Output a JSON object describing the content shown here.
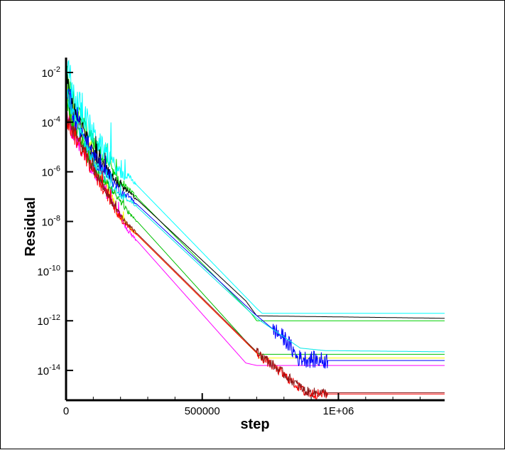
{
  "chart_data": {
    "type": "line",
    "title": "",
    "xlabel": "step",
    "ylabel": "Residual",
    "xlim": [
      0,
      1390000
    ],
    "ylim_log10": [
      -15.2,
      -1.4
    ],
    "y_scale": "log",
    "grid": false,
    "legend": "none",
    "x_ticks": [
      {
        "value": 0,
        "label": "0"
      },
      {
        "value": 500000,
        "label": "500000"
      },
      {
        "value": 1000000,
        "label": "1E+06"
      }
    ],
    "y_ticks": [
      {
        "exp": -2,
        "base": "10",
        "sup": "-2"
      },
      {
        "exp": -4,
        "base": "10",
        "sup": "-4"
      },
      {
        "exp": -6,
        "base": "10",
        "sup": "-6"
      },
      {
        "exp": -8,
        "base": "10",
        "sup": "-8"
      },
      {
        "exp": -10,
        "base": "10",
        "sup": "-10"
      },
      {
        "exp": -12,
        "base": "10",
        "sup": "-12"
      },
      {
        "exp": -14,
        "base": "10",
        "sup": "-14"
      }
    ],
    "series": [
      {
        "color": "#ffff00",
        "noise": 0.45,
        "x": [
          0,
          30000,
          100000,
          200000,
          220000,
          700000,
          710000,
          1390000
        ],
        "y": [
          -2.6,
          -3.8,
          -5.3,
          -7.9,
          -8.1,
          -13.3,
          -13.5,
          -13.5
        ]
      },
      {
        "color": "#ff00ff",
        "noise": 0.4,
        "x": [
          0,
          30000,
          100000,
          200000,
          230000,
          660000,
          700000,
          1390000
        ],
        "y": [
          -3.8,
          -4.5,
          -6.0,
          -7.8,
          -8.4,
          -13.7,
          -13.8,
          -13.8
        ]
      },
      {
        "color": "#00c000",
        "noise": 0.4,
        "x": [
          0,
          30000,
          100000,
          200000,
          220000,
          700000,
          720000,
          1390000
        ],
        "y": [
          -3.0,
          -4.2,
          -5.8,
          -7.2,
          -7.5,
          -13.3,
          -13.35,
          -13.35
        ]
      },
      {
        "color": "#00d000",
        "noise": 0.5,
        "x": [
          0,
          30000,
          100000,
          200000,
          230000,
          680000,
          700000,
          1390000
        ],
        "y": [
          -2.1,
          -3.4,
          -4.8,
          -6.5,
          -6.7,
          -11.7,
          -12.0,
          -12.0
        ]
      },
      {
        "color": "#00ffff",
        "noise": 0.8,
        "x": [
          0,
          30000,
          100000,
          200000,
          230000,
          700000,
          720000,
          1390000
        ],
        "y": [
          -1.8,
          -3.0,
          -4.5,
          -6.1,
          -6.2,
          -11.5,
          -11.7,
          -11.7
        ]
      },
      {
        "color": "#000000",
        "noise": 0.45,
        "x": [
          0,
          30000,
          100000,
          200000,
          230000,
          660000,
          700000,
          1390000
        ],
        "y": [
          -2.4,
          -3.6,
          -5.3,
          -6.6,
          -6.8,
          -11.2,
          -11.8,
          -11.9
        ]
      },
      {
        "color": "#0000ff",
        "noise": 0.5,
        "x": [
          0,
          30000,
          100000,
          200000,
          230000,
          690000,
          810000,
          850000,
          940000,
          1390000
        ],
        "y": [
          -2.5,
          -3.7,
          -5.4,
          -6.8,
          -7.0,
          -11.7,
          -12.8,
          -13.5,
          -13.6,
          -13.6
        ]
      },
      {
        "color": "#00e8e8",
        "noise": 0.35,
        "x": [
          0,
          30000,
          100000,
          200000,
          230000,
          700000,
          860000,
          950000,
          1390000
        ],
        "y": [
          -2.7,
          -3.8,
          -5.6,
          -7.0,
          -7.1,
          -11.9,
          -13.1,
          -13.2,
          -13.25
        ]
      },
      {
        "color": "#ff0000",
        "noise": 0.4,
        "x": [
          0,
          30000,
          100000,
          200000,
          230000,
          700000,
          880000,
          920000,
          1390000
        ],
        "y": [
          -3.8,
          -4.5,
          -6.0,
          -7.9,
          -8.2,
          -13.3,
          -14.9,
          -14.95,
          -14.95
        ]
      },
      {
        "color": "#8b1a1a",
        "noise": 0.3,
        "x": [
          0,
          30000,
          100000,
          200000,
          230000,
          700000,
          880000,
          920000,
          1390000
        ],
        "y": [
          -3.7,
          -4.4,
          -5.9,
          -7.8,
          -8.15,
          -13.25,
          -14.85,
          -14.9,
          -14.9
        ]
      }
    ]
  }
}
